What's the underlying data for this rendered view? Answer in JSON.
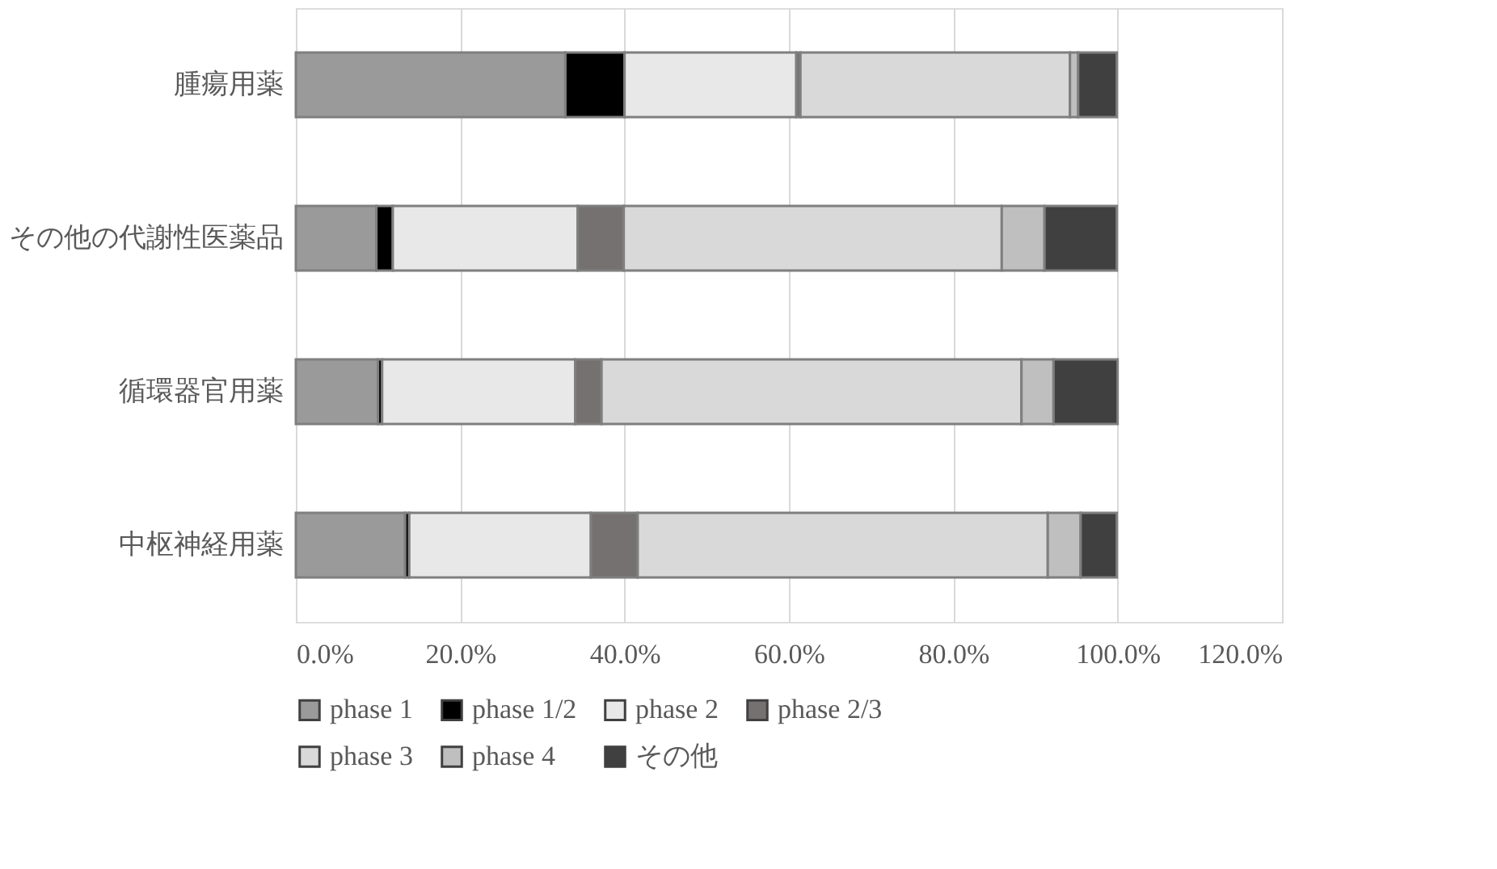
{
  "chart_data": {
    "type": "bar",
    "orientation": "horizontal",
    "stacked": true,
    "categories": [
      "腫瘍用薬",
      "その他の代謝性医薬品",
      "循環器官用薬",
      "中枢神経用薬"
    ],
    "series": [
      {
        "name": "phase 1",
        "color": "#9a9a9a",
        "values": [
          32.8,
          9.8,
          10.0,
          13.3
        ]
      },
      {
        "name": "phase 1/2",
        "color": "#000000",
        "values": [
          7.2,
          2.0,
          0.5,
          0.5
        ]
      },
      {
        "name": "phase 2",
        "color": "#e8e8e8",
        "values": [
          20.9,
          22.5,
          23.5,
          22.1
        ]
      },
      {
        "name": "phase 2/3",
        "color": "#767171",
        "values": [
          0.5,
          5.6,
          3.2,
          5.7
        ]
      },
      {
        "name": "phase 3",
        "color": "#d9d9d9",
        "values": [
          32.8,
          46.0,
          51.1,
          49.9
        ]
      },
      {
        "name": "phase 4",
        "color": "#bfbfbf",
        "values": [
          1.0,
          5.2,
          3.9,
          4.0
        ]
      },
      {
        "name": "その他",
        "color": "#404040",
        "values": [
          4.7,
          8.8,
          7.8,
          4.4
        ]
      }
    ],
    "xlim": [
      0,
      120
    ],
    "xticks": [
      {
        "value": 0,
        "label": "0.0%"
      },
      {
        "value": 20,
        "label": "20.0%"
      },
      {
        "value": 40,
        "label": "40.0%"
      },
      {
        "value": 60,
        "label": "60.0%"
      },
      {
        "value": 80,
        "label": "80.0%"
      },
      {
        "value": 100,
        "label": "100.0%"
      },
      {
        "value": 120,
        "label": "120.0%"
      }
    ],
    "grid": "x",
    "legend": "bottom"
  }
}
